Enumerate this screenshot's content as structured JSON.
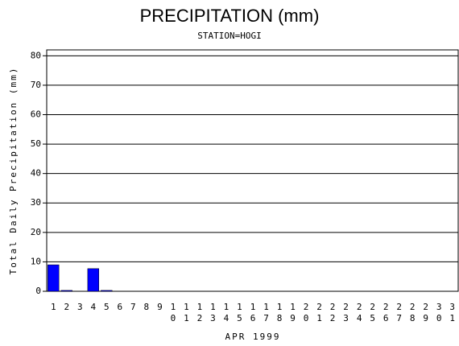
{
  "chart_data": {
    "type": "bar",
    "title": "PRECIPITATION (mm)",
    "subtitle": "STATION=HOGI",
    "x_label": "APR 1999",
    "y_label": "Total Daily Precipitation (mm)",
    "categories": [
      "1",
      "2",
      "3",
      "4",
      "5",
      "6",
      "7",
      "8",
      "9",
      "10",
      "11",
      "12",
      "13",
      "14",
      "15",
      "16",
      "17",
      "18",
      "19",
      "20",
      "21",
      "22",
      "23",
      "24",
      "25",
      "26",
      "27",
      "28",
      "29",
      "30",
      "31"
    ],
    "values": [
      9,
      0.3,
      0,
      7.7,
      0.3,
      0,
      0,
      0,
      0,
      0,
      0,
      0,
      0,
      0,
      0,
      0,
      0,
      0,
      0,
      0,
      0,
      0,
      0,
      0,
      0,
      0,
      0,
      0,
      0,
      0,
      0
    ],
    "color": "#0000ff",
    "ylim": [
      0,
      82
    ],
    "yticks": [
      0,
      10,
      20,
      30,
      40,
      50,
      60,
      70,
      80
    ],
    "grid": true
  }
}
